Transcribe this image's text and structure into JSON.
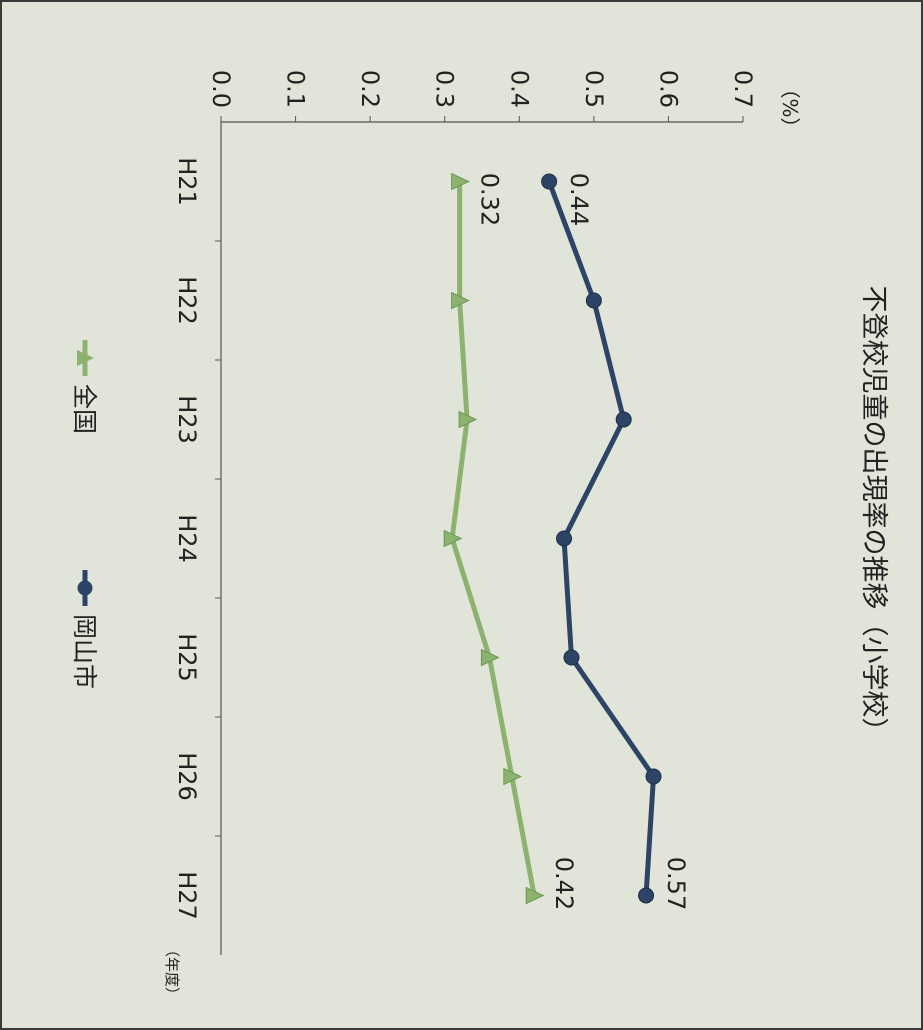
{
  "chart_data": {
    "type": "line",
    "title": "不登校児童の出現率の推移（小学校）",
    "y_unit": "（%）",
    "x_unit": "（年度）",
    "categories": [
      "H21",
      "H22",
      "H23",
      "H24",
      "H25",
      "H26",
      "H27"
    ],
    "ylim": [
      0,
      0.7
    ],
    "yticks": [
      "0.0",
      "0.1",
      "0.2",
      "0.3",
      "0.4",
      "0.5",
      "0.6",
      "0.7"
    ],
    "grid": false,
    "legend_position": "bottom",
    "series": [
      {
        "name": "岡山市",
        "values": [
          0.44,
          0.5,
          0.54,
          0.46,
          0.47,
          0.58,
          0.57
        ],
        "marker": "circle",
        "color": "#2d4466",
        "labels": [
          {
            "index": 0,
            "text": "0.44"
          },
          {
            "index": 6,
            "text": "0.57"
          }
        ]
      },
      {
        "name": "全国",
        "values": [
          0.32,
          0.32,
          0.33,
          0.31,
          0.36,
          0.39,
          0.42
        ],
        "marker": "triangle",
        "color": "#8bb36f",
        "labels": [
          {
            "index": 0,
            "text": "0.32"
          },
          {
            "index": 6,
            "text": "0.42"
          }
        ]
      }
    ]
  }
}
